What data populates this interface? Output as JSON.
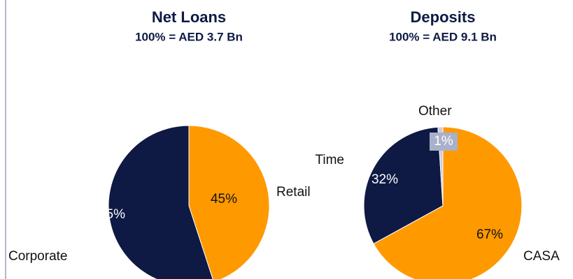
{
  "chart_data": [
    {
      "type": "pie",
      "title": "Net Loans",
      "subtitle": "100% = AED 3.7 Bn",
      "categories": [
        "Retail",
        "Corporate"
      ],
      "values": [
        45,
        55
      ],
      "value_labels": [
        "45%",
        "55%"
      ],
      "colors": [
        "#ff9900",
        "#0e1a44"
      ]
    },
    {
      "type": "pie",
      "title": "Deposits",
      "subtitle": "100% = AED 9.1 Bn",
      "categories": [
        "CASA",
        "Time",
        "Other"
      ],
      "values": [
        67,
        32,
        1
      ],
      "value_labels": [
        "67%",
        "32%",
        "1%"
      ],
      "colors": [
        "#ff9900",
        "#0e1a44",
        "#c8cce0"
      ]
    }
  ]
}
